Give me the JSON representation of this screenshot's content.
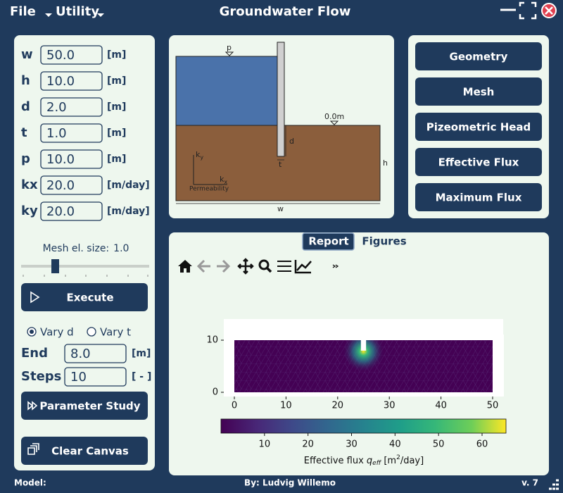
{
  "menu": [
    "File",
    "Utility"
  ],
  "title": "Groundwater Flow",
  "inputs": [
    {
      "label": "w",
      "value": "50.0",
      "unit": "[m]"
    },
    {
      "label": "h",
      "value": "10.0",
      "unit": "[m]"
    },
    {
      "label": "d",
      "value": "2.0",
      "unit": "[m]"
    },
    {
      "label": "t",
      "value": "1.0",
      "unit": "[m]"
    },
    {
      "label": "p",
      "value": "10.0",
      "unit": "[m]"
    },
    {
      "label": "kx",
      "value": "20.0",
      "unit": "[m/day]"
    },
    {
      "label": "ky",
      "value": "20.0",
      "unit": "[m/day]"
    }
  ],
  "mesh_size": {
    "label": "Mesh el. size:",
    "value": "1.0"
  },
  "execute": "Execute",
  "study": {
    "options": [
      "Vary d",
      "Vary t"
    ],
    "selected": 0,
    "end": {
      "label": "End",
      "value": "8.0",
      "unit": "[m]"
    },
    "steps": {
      "label": "Steps",
      "value": "10",
      "unit": "[ - ]"
    },
    "button": "Parameter Study"
  },
  "clear": "Clear Canvas",
  "diagram": {
    "p": "p",
    "surface": "0.0m",
    "d": "d",
    "t": "t",
    "h": "h",
    "w": "w",
    "ky": {
      "symbol": "k",
      "sub": "y"
    },
    "kx": {
      "symbol": "k",
      "sub": "x"
    },
    "permeability": "Permeability"
  },
  "actions": [
    "Geometry",
    "Mesh",
    "Pizeometric Head",
    "Effective Flux",
    "Maximum Flux"
  ],
  "tabs": [
    "Report",
    "Figures"
  ],
  "active_tab": 0,
  "figure": {
    "type": "mesh",
    "title": "Effective flux",
    "xlim": [
      0,
      50
    ],
    "ylim": [
      0,
      10
    ],
    "xticks": [
      0,
      10,
      20,
      30,
      40,
      50
    ],
    "yticks": [
      0,
      10
    ],
    "colorbar": {
      "lim": [
        0,
        65.5
      ],
      "ticks": [
        10,
        20,
        30,
        40,
        50,
        60
      ],
      "label": [
        "Effective flux ",
        "q",
        "eff",
        " [m",
        "2",
        "/day]"
      ]
    }
  },
  "footer": {
    "model": "Model:",
    "author": "By: Ludvig Willemo",
    "version": "v. 7"
  }
}
